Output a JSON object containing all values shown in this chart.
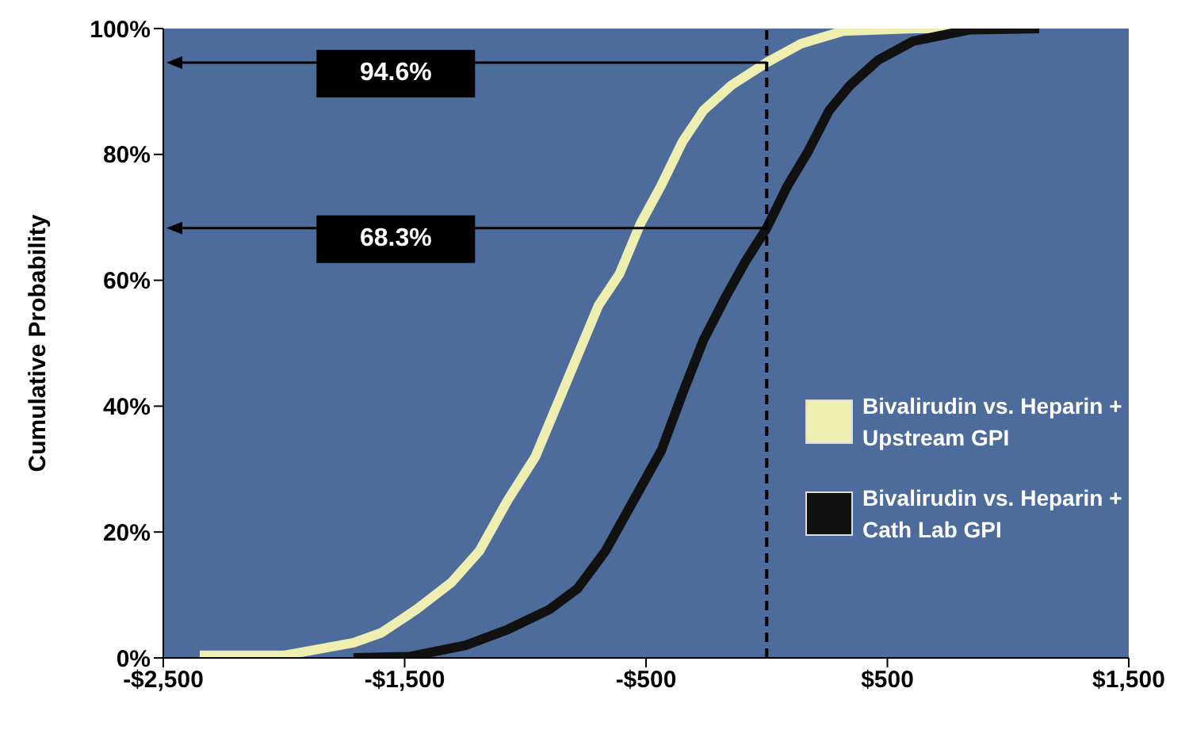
{
  "chart_data": {
    "type": "line",
    "ylabel": "Cumulative Probability",
    "series": [
      {
        "name": "Bivalirudin vs. Heparin + Upstream GPI",
        "color": "#eeeeb0",
        "x": [
          -2349,
          -2001,
          -1914,
          -1712,
          -1596,
          -1451,
          -1306,
          -1190,
          -1074,
          -958,
          -871,
          -784,
          -697,
          -610,
          -523,
          -438,
          -349,
          -262,
          -146,
          0,
          143,
          317,
          607,
          810
        ],
        "values": [
          0.4,
          0.4,
          1,
          2.4,
          4,
          7.7,
          12,
          17,
          25,
          32,
          40,
          48,
          56,
          61,
          69,
          75,
          82,
          87,
          91,
          94.6,
          97.6,
          99.6,
          100,
          100
        ]
      },
      {
        "name": "Bivalirudin vs. Heparin + Cath Lab GPI",
        "color": "#111111",
        "x": [
          -1712,
          -1480,
          -1248,
          -1074,
          -900,
          -784,
          -668,
          -552,
          -436,
          -349,
          -262,
          -175,
          -88,
          0,
          86,
          172,
          259,
          346,
          462,
          607,
          839,
          1129
        ],
        "values": [
          0,
          0.2,
          2,
          4.5,
          7.7,
          11,
          17,
          25,
          33,
          42,
          50.5,
          57,
          63,
          68.3,
          75,
          80.5,
          87,
          91,
          95,
          98,
          99.8,
          100
        ]
      }
    ],
    "xlim": [
      -2500,
      1500
    ],
    "xticks": [
      {
        "value": -2500,
        "label": "-$2,500"
      },
      {
        "value": -1500,
        "label": "-$1,500"
      },
      {
        "value": -500,
        "label": "-$500"
      },
      {
        "value": 500,
        "label": "$500"
      },
      {
        "value": 1500,
        "label": "$1,500"
      }
    ],
    "ylim": [
      0,
      100
    ],
    "yticks": [
      {
        "value": 0,
        "label": "0%"
      },
      {
        "value": 20,
        "label": "20%"
      },
      {
        "value": 40,
        "label": "40%"
      },
      {
        "value": 60,
        "label": "60%"
      },
      {
        "value": 80,
        "label": "80%"
      },
      {
        "value": 100,
        "label": "100%"
      }
    ],
    "ref_lines": [
      {
        "axis": "x",
        "value": 0,
        "line_style": "dashed",
        "color": "#000000"
      },
      {
        "axis": "y",
        "value": 94.6,
        "label": "94.6%",
        "color": "#000000"
      },
      {
        "axis": "y",
        "value": 68.3,
        "label": "68.3%",
        "color": "#000000"
      }
    ],
    "legend": "right",
    "marker": "none",
    "line_style": "solid"
  }
}
